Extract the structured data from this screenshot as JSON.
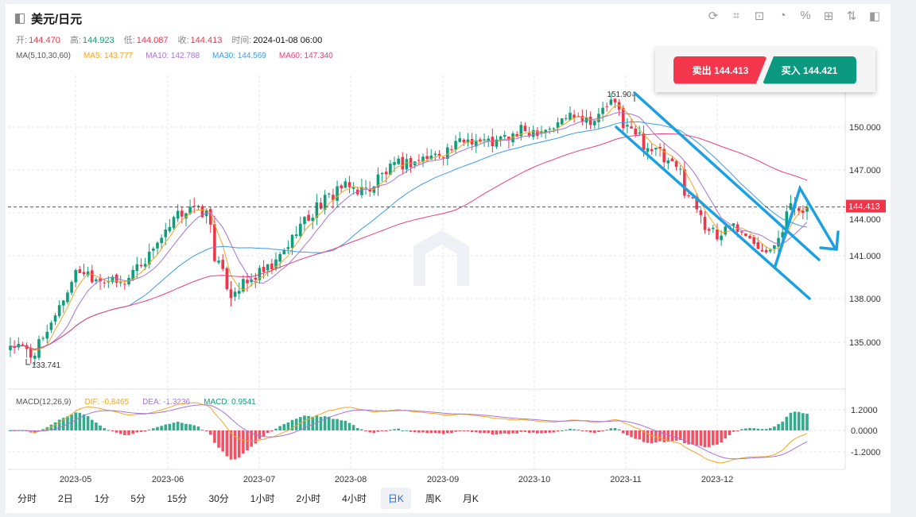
{
  "header": {
    "title": "美元/日元"
  },
  "ohlc": {
    "open_label": "开:",
    "open": "144.470",
    "high_label": "高:",
    "high": "144.923",
    "low_label": "低:",
    "low": "144.087",
    "close_label": "收:",
    "close": "144.413",
    "time_label": "时间:",
    "time": "2024-01-08 06:00"
  },
  "ma": {
    "label": "MA(5,10,30,60)",
    "ma5": "MA5: 143.777",
    "ma10": "MA10: 142.788",
    "ma30": "MA30: 144.569",
    "ma60": "MA60: 147.340"
  },
  "toolbar": [
    "refresh-icon",
    "draw-icon",
    "indicator-icon",
    "pie-chart-icon",
    "percent-icon",
    "grid-icon",
    "sort-icon",
    "sidebar-icon"
  ],
  "trade": {
    "sell": "卖出 144.413",
    "buy": "买入 144.421"
  },
  "macd": {
    "label": "MACD(12,26,9)",
    "dif": "DIF: -0.8465",
    "dea": "DEA: -1.3236",
    "macd": "MACD: 0.9541"
  },
  "timeframes": [
    "分时",
    "2日",
    "1分",
    "5分",
    "15分",
    "30分",
    "1小时",
    "2小时",
    "4小时",
    "日K",
    "周K",
    "月K"
  ],
  "active_timeframe": "日K",
  "colors": {
    "up": "#0f9d7a",
    "down": "#f0344a",
    "ma5": "#f5a623",
    "ma10": "#a774d6",
    "ma30": "#3b9be8",
    "ma60": "#e8407a",
    "annotation": "#1ba0e2"
  },
  "chart_data": {
    "type": "candlestick",
    "symbol": "USD/JPY",
    "y_ticks": [
      "150.000",
      "147.000",
      "144.000",
      "141.000",
      "138.000",
      "135.000"
    ],
    "macd_ticks": [
      "1.2000",
      "0.0000",
      "-1.2000"
    ],
    "x_ticks": [
      "2023-05",
      "2023-06",
      "2023-07",
      "2023-08",
      "2023-09",
      "2023-10",
      "2023-11",
      "2023-12"
    ],
    "current_price": "144.413",
    "max_label": "151.90",
    "min_label": "133.741",
    "close_keypoints": [
      [
        "2023-04-10",
        134.8
      ],
      [
        "2023-04-17",
        134.0
      ],
      [
        "2023-04-24",
        136.5
      ],
      [
        "2023-04-28",
        138.5
      ],
      [
        "2023-05-03",
        140.0
      ],
      [
        "2023-05-09",
        139.5
      ],
      [
        "2023-05-17",
        139.0
      ],
      [
        "2023-05-24",
        140.5
      ],
      [
        "2023-05-30",
        142.0
      ],
      [
        "2023-06-09",
        144.5
      ],
      [
        "2023-06-15",
        143.9
      ],
      [
        "2023-06-19",
        141.0
      ],
      [
        "2023-06-23",
        138.3
      ],
      [
        "2023-06-30",
        139.2
      ],
      [
        "2023-07-10",
        140.5
      ],
      [
        "2023-07-14",
        142.2
      ],
      [
        "2023-07-21",
        143.9
      ],
      [
        "2023-07-31",
        145.8
      ],
      [
        "2023-08-09",
        145.6
      ],
      [
        "2023-08-18",
        147.2
      ],
      [
        "2023-08-29",
        147.8
      ],
      [
        "2023-09-05",
        148.3
      ],
      [
        "2023-09-13",
        149.2
      ],
      [
        "2023-09-22",
        148.9
      ],
      [
        "2023-10-02",
        149.7
      ],
      [
        "2023-10-12",
        150.0
      ],
      [
        "2023-10-19",
        151.0
      ],
      [
        "2023-10-26",
        150.5
      ],
      [
        "2023-11-01",
        151.7
      ],
      [
        "2023-11-08",
        149.7
      ],
      [
        "2023-11-16",
        148.3
      ],
      [
        "2023-11-24",
        146.9
      ],
      [
        "2023-11-30",
        144.4
      ],
      [
        "2023-12-07",
        142.2
      ],
      [
        "2023-12-12",
        143.3
      ],
      [
        "2023-12-18",
        142.2
      ],
      [
        "2023-12-25",
        141.4
      ],
      [
        "2024-01-02",
        144.4
      ],
      [
        "2024-01-08",
        144.413
      ]
    ]
  }
}
